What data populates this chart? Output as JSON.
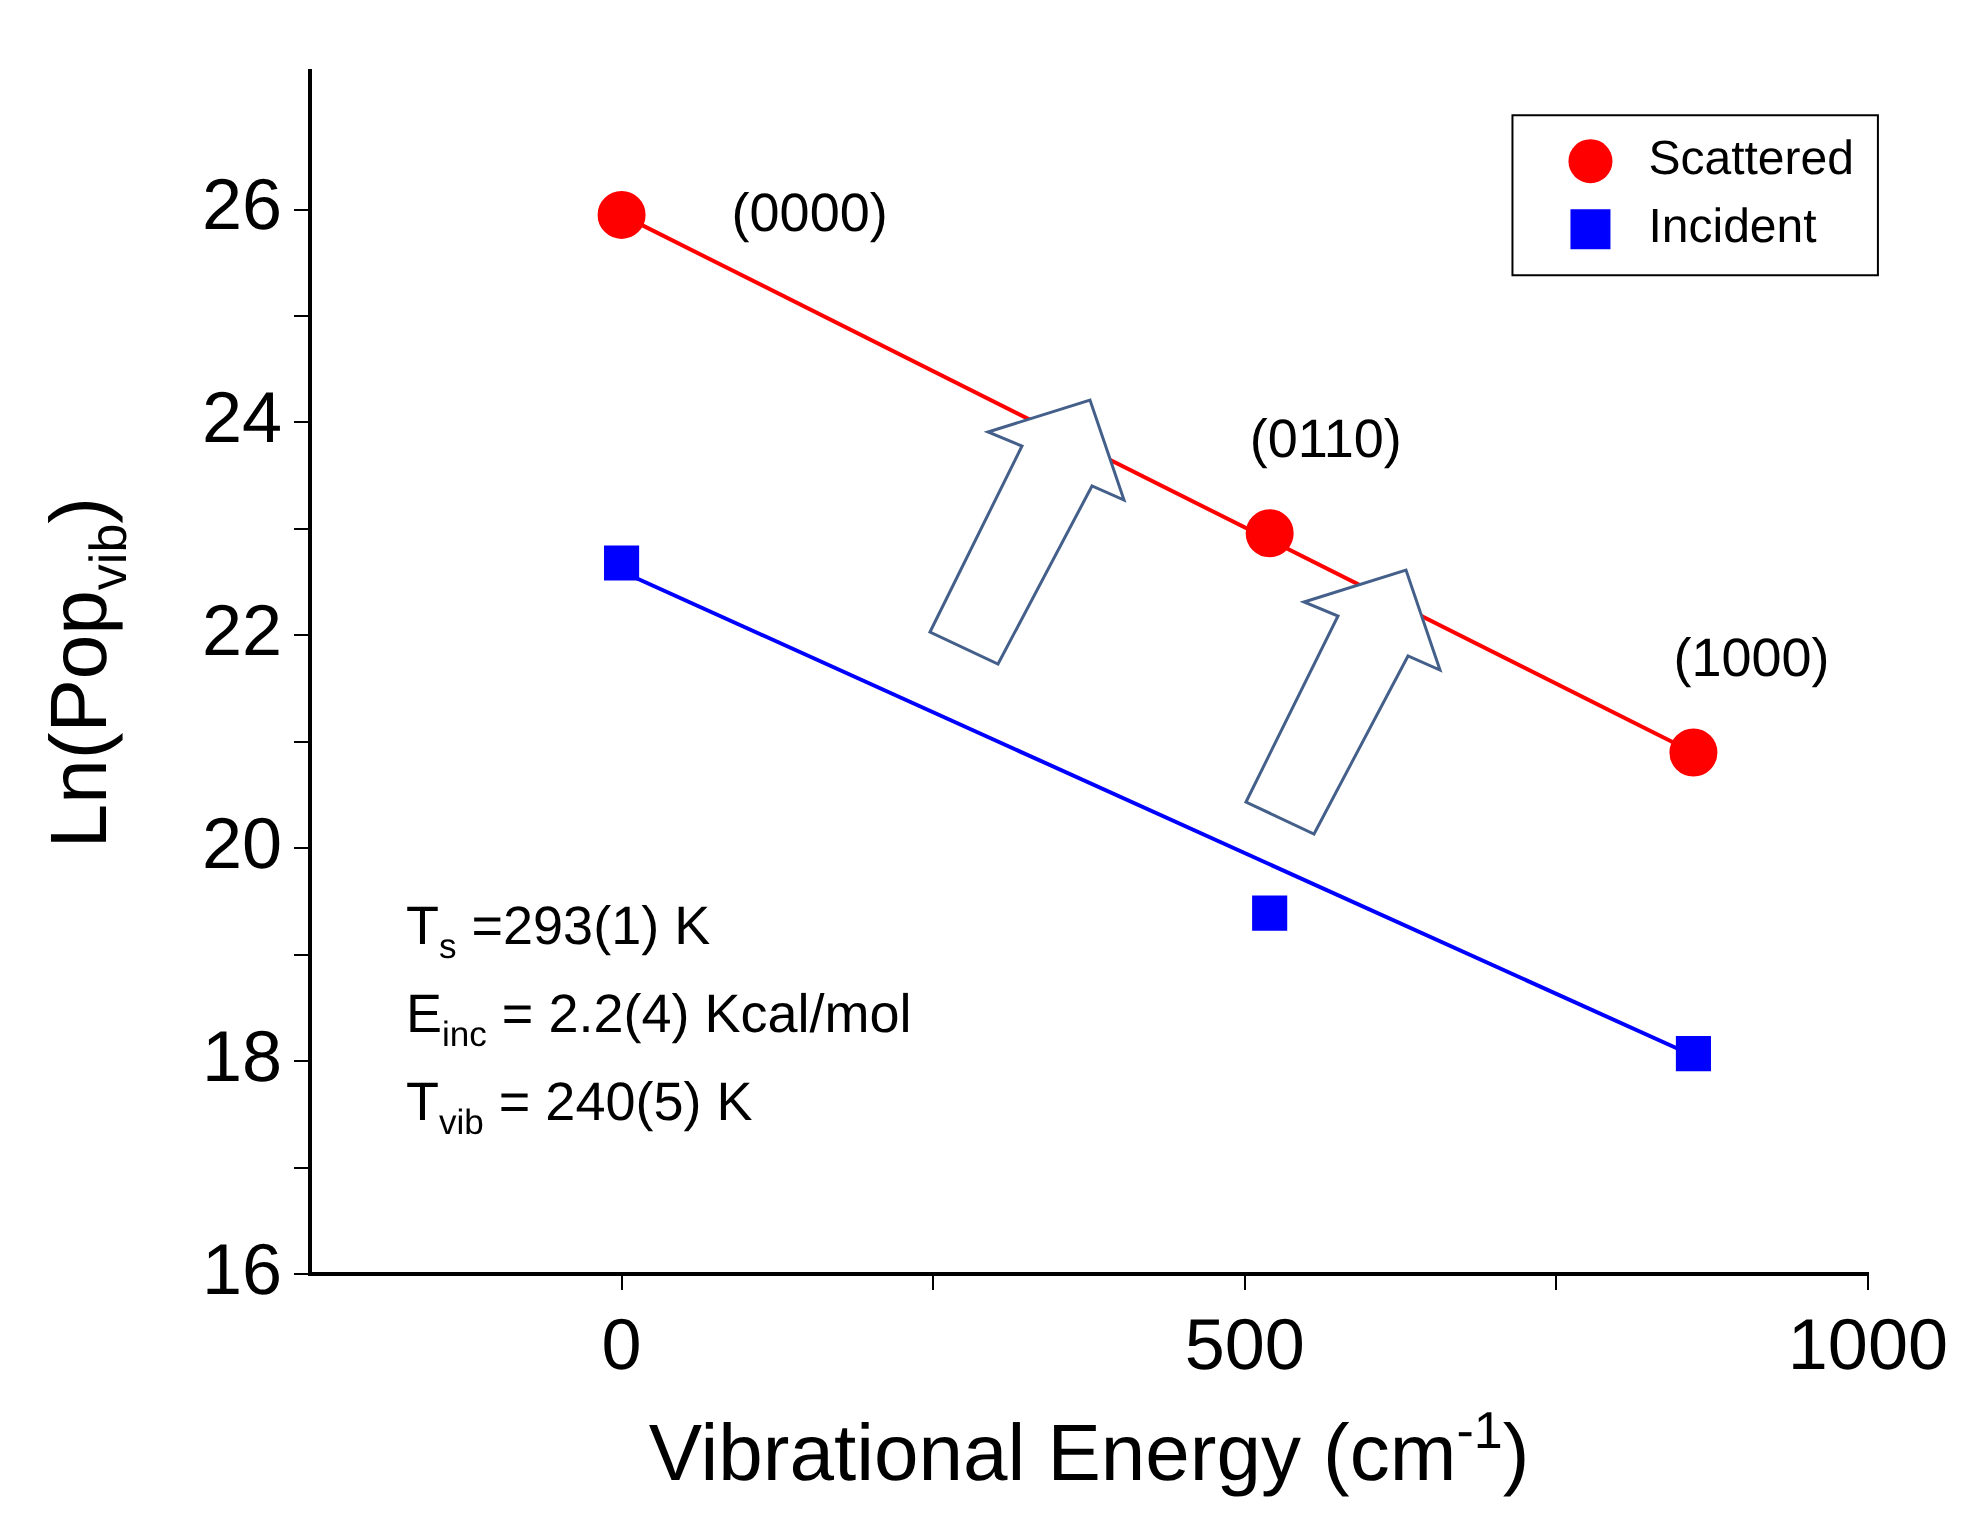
{
  "chart_data": {
    "type": "scatter",
    "xlabel": "Vibrational Energy (cm$^{-1}$)",
    "ylabel": "Ln(Pop$_{vib}$)",
    "xlim": [
      -250,
      1000
    ],
    "xticks": [
      0,
      {
        "value": 250,
        "label": null
      },
      500,
      {
        "value": 750,
        "label": null
      },
      1000
    ],
    "ylim": [
      16,
      27.3
    ],
    "yticks": [
      16,
      {
        "value": 17,
        "label": null
      },
      18,
      {
        "value": 19,
        "label": null
      },
      20,
      {
        "value": 21,
        "label": null
      },
      22,
      {
        "value": 23,
        "label": null
      },
      24,
      {
        "value": 25,
        "label": null
      },
      26
    ],
    "grid": false,
    "legend": "top right",
    "series": [
      {
        "name": "Scattered",
        "color": "#ff0000",
        "marker": "circle",
        "x": [
          0,
          520,
          860
        ],
        "values": [
          25.95,
          22.96,
          20.9
        ]
      },
      {
        "name": "Incident",
        "color": "#0000ff",
        "marker": "square",
        "x": [
          0,
          520,
          860
        ],
        "values": [
          22.68,
          19.39,
          18.07
        ]
      },
      {
        "type": "line",
        "color": "#ff0000",
        "marker": "none",
        "x": [
          0,
          860
        ],
        "values": [
          25.95,
          20.9
        ]
      },
      {
        "type": "line",
        "color": "#0000ff",
        "marker": "none",
        "x": [
          0,
          860
        ],
        "values": [
          22.6,
          18.05
        ]
      }
    ],
    "annotations": [
      {
        "text": "(0000)",
        "x": 0,
        "y": 25.95
      },
      {
        "text": "(0110)",
        "x": 520,
        "y": 22.96
      },
      {
        "text": "(1000)",
        "x": 860,
        "y": 20.9
      },
      "T$_{s}$ =293(1) K",
      "E$_{inc}$ = 2.2(4) Kcal/mol",
      "T$_{vib}$ = 240(5) K"
    ]
  }
}
